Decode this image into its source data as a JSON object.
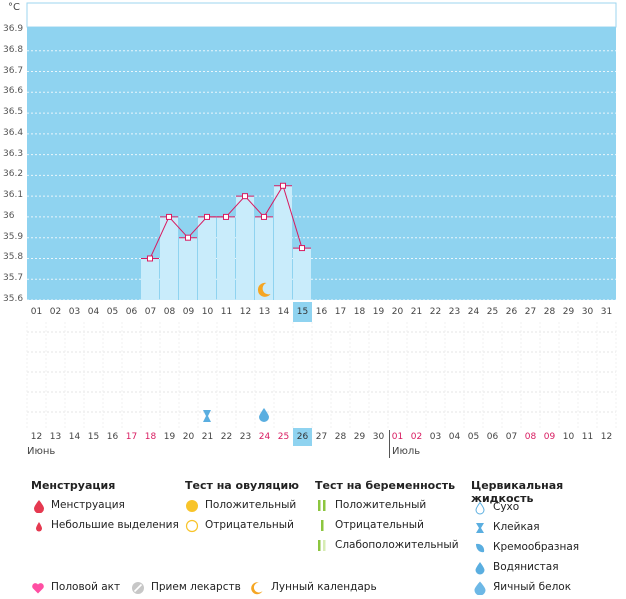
{
  "chart_data": {
    "type": "line",
    "ylabel": "°C",
    "yticks": [
      "36.9",
      "36.8",
      "36.7",
      "36.6",
      "36.5",
      "36.4",
      "36.3",
      "36.2",
      "36.1",
      "36",
      "35.9",
      "35.8",
      "35.7",
      "35.6"
    ],
    "ylim": [
      35.6,
      36.9
    ],
    "x_cycle_days": [
      "01",
      "02",
      "03",
      "04",
      "05",
      "06",
      "07",
      "08",
      "09",
      "10",
      "11",
      "12",
      "13",
      "14",
      "15",
      "16",
      "17",
      "18",
      "19",
      "20",
      "21",
      "22",
      "23",
      "24",
      "25",
      "26",
      "27",
      "28",
      "29",
      "30",
      "31"
    ],
    "current_cycle_day": "15",
    "series": [
      {
        "x": [
          "07",
          "08",
          "09",
          "10",
          "11",
          "12",
          "13",
          "14",
          "15"
        ],
        "values": [
          35.8,
          36.0,
          35.9,
          36.0,
          36.0,
          36.1,
          36.0,
          36.15,
          35.85
        ]
      }
    ],
    "moon_day": "13",
    "grid": true
  },
  "calendar": {
    "dates": [
      {
        "d": "12",
        "red": false
      },
      {
        "d": "13",
        "red": false
      },
      {
        "d": "14",
        "red": false
      },
      {
        "d": "15",
        "red": false
      },
      {
        "d": "16",
        "red": false
      },
      {
        "d": "17",
        "red": true
      },
      {
        "d": "18",
        "red": true
      },
      {
        "d": "19",
        "red": false
      },
      {
        "d": "20",
        "red": false
      },
      {
        "d": "21",
        "red": false
      },
      {
        "d": "22",
        "red": false
      },
      {
        "d": "23",
        "red": false
      },
      {
        "d": "24",
        "red": true
      },
      {
        "d": "25",
        "red": true
      },
      {
        "d": "26",
        "red": false
      },
      {
        "d": "27",
        "red": false
      },
      {
        "d": "28",
        "red": false
      },
      {
        "d": "29",
        "red": false
      },
      {
        "d": "30",
        "red": false
      },
      {
        "d": "01",
        "red": true
      },
      {
        "d": "02",
        "red": true
      },
      {
        "d": "03",
        "red": false
      },
      {
        "d": "04",
        "red": false
      },
      {
        "d": "05",
        "red": false
      },
      {
        "d": "06",
        "red": false
      },
      {
        "d": "07",
        "red": false
      },
      {
        "d": "08",
        "red": true
      },
      {
        "d": "09",
        "red": true
      },
      {
        "d": "10",
        "red": false
      },
      {
        "d": "11",
        "red": false
      },
      {
        "d": "12",
        "red": false
      }
    ],
    "today": "26",
    "month1": "Июнь",
    "month2": "Июль",
    "markers": [
      {
        "date": "21",
        "icon": "sticky-fluid-icon"
      },
      {
        "date": "24",
        "icon": "watery-fluid-icon"
      }
    ]
  },
  "legend": {
    "menstruation": {
      "title": "Менструация",
      "items": [
        "Менструация",
        "Небольшие выделения"
      ]
    },
    "ovulation": {
      "title": "Тест на овуляцию",
      "items": [
        "Положительный",
        "Отрицательный"
      ]
    },
    "pregnancy": {
      "title": "Тест на беременность",
      "items": [
        "Положительный",
        "Отрицательный",
        "Слабоположительный"
      ]
    },
    "cervical": {
      "title": "Цервикальная жидкость",
      "items": [
        "Сухо",
        "Клейкая",
        "Кремообразная",
        "Водянистая",
        "Яичный белок"
      ]
    },
    "bottom": [
      "Половой акт",
      "Прием лекарств",
      "Лунный календарь"
    ]
  },
  "colors": {
    "plot_bg": "#8fd3f0",
    "bar": "#c9ecfb",
    "line": "#d81b60",
    "accent_red": "#e53950",
    "orange": "#f5a623",
    "heart": "#ff4fa3",
    "green": "#8cc63f"
  }
}
